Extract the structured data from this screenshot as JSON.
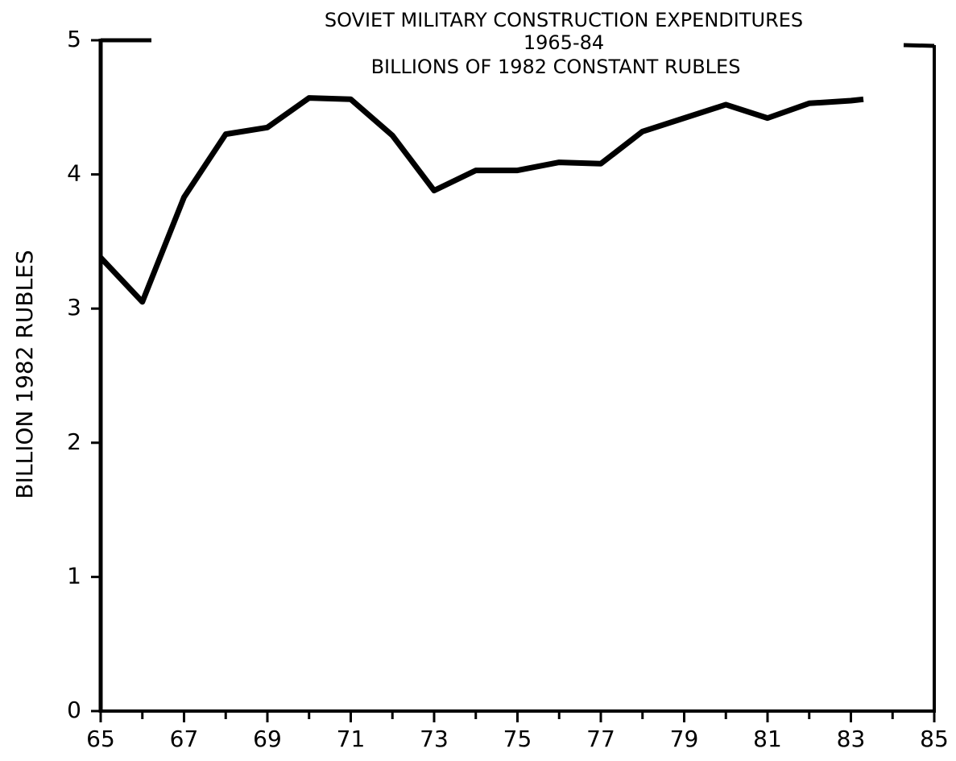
{
  "chart_data": {
    "type": "line",
    "title": "SOVIET MILITARY CONSTRUCTION EXPENDITURES",
    "subtitle": "1965-84",
    "subtitle2": "BILLIONS OF 1982 CONSTANT RUBLES",
    "y_label": "BILLION 1982 RUBLES",
    "x": [
      65,
      66,
      67,
      68,
      69,
      70,
      71,
      72,
      73,
      74,
      75,
      76,
      77,
      78,
      79,
      80,
      81,
      82,
      83,
      83.3
    ],
    "series": [
      {
        "name": "Expenditures",
        "color": "#000000",
        "values": [
          3.38,
          3.05,
          3.83,
          4.3,
          4.35,
          4.57,
          4.56,
          4.29,
          3.88,
          4.03,
          4.03,
          4.09,
          4.08,
          4.32,
          4.42,
          4.52,
          4.42,
          4.53,
          4.55,
          4.56
        ]
      }
    ],
    "xlim": [
      65,
      85
    ],
    "ylim": [
      0,
      5
    ],
    "xticks": [
      65,
      67,
      69,
      71,
      73,
      75,
      77,
      79,
      81,
      83,
      85
    ],
    "xminorticks": [
      66,
      68,
      70,
      72,
      74,
      76,
      78,
      80,
      82,
      84
    ],
    "yticks": [
      0,
      1,
      2,
      3,
      4,
      5
    ],
    "grid": false
  }
}
